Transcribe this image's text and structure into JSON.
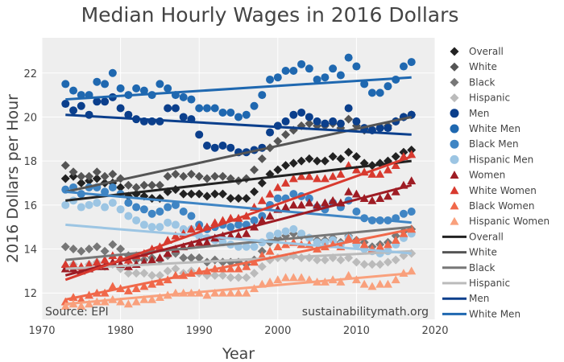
{
  "chart_data": {
    "type": "scatter",
    "title": "Median Hourly Wages in 2016 Dollars",
    "xlabel": "Year",
    "ylabel": "2016 Dollars per Hour",
    "xlim": [
      1970,
      2020
    ],
    "ylim": [
      10.8,
      23.6
    ],
    "xticks": [
      1970,
      1980,
      1990,
      2000,
      2010,
      2020
    ],
    "yticks": [
      12,
      14,
      16,
      18,
      20,
      22
    ],
    "grid": true,
    "background": "#eeeeee",
    "annotations": [
      {
        "text": "Source: EPI",
        "position": "bottom-left"
      },
      {
        "text": "sustainabilitymath.org",
        "position": "bottom-right"
      }
    ],
    "legend_position": "right",
    "x": [
      1973,
      1974,
      1975,
      1976,
      1977,
      1978,
      1979,
      1980,
      1981,
      1982,
      1983,
      1984,
      1985,
      1986,
      1987,
      1988,
      1989,
      1990,
      1991,
      1992,
      1993,
      1994,
      1995,
      1996,
      1997,
      1998,
      1999,
      2000,
      2001,
      2002,
      2003,
      2004,
      2005,
      2006,
      2007,
      2008,
      2009,
      2010,
      2011,
      2012,
      2013,
      2014,
      2015,
      2016,
      2017
    ],
    "series": [
      {
        "name": "Overall",
        "marker": "diamond",
        "color": "#222222",
        "values": [
          17.2,
          17.3,
          17.0,
          17.1,
          17.2,
          17.0,
          17.0,
          16.8,
          16.4,
          16.5,
          16.4,
          16.3,
          16.3,
          16.6,
          16.7,
          16.5,
          16.5,
          16.5,
          16.4,
          16.5,
          16.5,
          16.3,
          16.3,
          16.3,
          16.6,
          17.0,
          17.4,
          17.6,
          17.8,
          17.9,
          18.0,
          18.1,
          18.0,
          18.0,
          18.2,
          18.1,
          18.4,
          18.2,
          17.9,
          17.8,
          17.9,
          18.0,
          18.2,
          18.4,
          18.5
        ]
      },
      {
        "name": "White",
        "marker": "diamond",
        "color": "#555555",
        "values": [
          17.8,
          17.5,
          17.3,
          17.3,
          17.5,
          17.3,
          17.4,
          17.2,
          16.9,
          16.8,
          16.9,
          16.9,
          16.9,
          17.3,
          17.4,
          17.3,
          17.4,
          17.3,
          17.2,
          17.3,
          17.3,
          17.2,
          17.1,
          17.2,
          17.6,
          18.1,
          18.6,
          18.9,
          19.2,
          19.4,
          19.6,
          19.7,
          19.6,
          19.6,
          19.7,
          19.5,
          19.9,
          19.6,
          19.4,
          19.4,
          19.5,
          19.6,
          19.8,
          20.0,
          20.1
        ]
      },
      {
        "name": "Black",
        "marker": "diamond",
        "color": "#777777",
        "values": [
          14.1,
          14.0,
          13.9,
          14.0,
          14.1,
          13.9,
          14.2,
          14.0,
          13.7,
          13.5,
          13.5,
          13.6,
          13.5,
          13.7,
          13.8,
          13.6,
          13.6,
          13.6,
          13.4,
          13.5,
          13.4,
          13.4,
          13.4,
          13.3,
          13.5,
          13.9,
          14.3,
          14.5,
          14.6,
          14.7,
          14.6,
          14.5,
          14.4,
          14.4,
          14.5,
          14.3,
          14.6,
          14.4,
          14.3,
          14.1,
          14.2,
          14.3,
          14.6,
          14.8,
          14.9
        ]
      },
      {
        "name": "Hispanic",
        "marker": "diamond",
        "color": "#bbbbbb",
        "values": [
          13.2,
          13.3,
          13.1,
          13.3,
          13.4,
          13.2,
          13.3,
          13.1,
          12.9,
          12.9,
          12.9,
          12.8,
          12.8,
          13.0,
          13.1,
          12.9,
          13.0,
          12.9,
          12.8,
          12.8,
          12.8,
          12.7,
          12.7,
          12.7,
          12.9,
          13.2,
          13.5,
          13.6,
          13.6,
          13.7,
          13.6,
          13.6,
          13.5,
          13.5,
          13.6,
          13.5,
          13.6,
          13.4,
          13.3,
          13.3,
          13.3,
          13.4,
          13.5,
          13.7,
          13.8
        ]
      },
      {
        "name": "Men",
        "marker": "circle",
        "color": "#0b3f8c",
        "values": [
          20.6,
          20.3,
          20.5,
          20.1,
          20.7,
          20.7,
          20.9,
          20.4,
          20.1,
          19.9,
          19.8,
          19.8,
          19.8,
          20.4,
          20.4,
          20.0,
          19.9,
          19.2,
          18.7,
          18.6,
          18.7,
          18.6,
          18.4,
          18.4,
          18.5,
          18.6,
          19.3,
          19.6,
          19.8,
          20.1,
          20.2,
          20.0,
          19.8,
          19.7,
          19.8,
          19.7,
          20.4,
          19.8,
          19.5,
          19.4,
          19.5,
          19.5,
          19.8,
          20.0,
          20.1
        ]
      },
      {
        "name": "White Men",
        "marker": "circle",
        "color": "#1f68b0",
        "values": [
          21.5,
          21.2,
          21.0,
          21.0,
          21.6,
          21.5,
          22.0,
          21.3,
          21.0,
          21.3,
          21.2,
          21.0,
          21.5,
          21.3,
          21.0,
          20.9,
          20.8,
          20.4,
          20.4,
          20.4,
          20.2,
          20.2,
          20.0,
          20.1,
          20.5,
          21.0,
          21.7,
          21.8,
          22.1,
          22.1,
          22.4,
          22.2,
          21.7,
          21.8,
          22.2,
          21.9,
          22.7,
          22.3,
          21.5,
          21.1,
          21.1,
          21.4,
          21.7,
          22.3,
          22.5
        ]
      },
      {
        "name": "Black Men",
        "marker": "circle",
        "color": "#3f85c4",
        "values": [
          16.7,
          16.8,
          16.5,
          16.8,
          16.8,
          16.6,
          16.8,
          16.5,
          16.1,
          15.9,
          15.8,
          15.6,
          15.7,
          15.9,
          16.0,
          15.7,
          15.5,
          15.1,
          14.9,
          15.0,
          15.1,
          15.0,
          15.1,
          15.1,
          15.3,
          15.5,
          16.0,
          16.3,
          16.3,
          16.5,
          16.4,
          16.3,
          15.9,
          15.8,
          16.1,
          15.9,
          16.2,
          15.7,
          15.4,
          15.3,
          15.3,
          15.3,
          15.4,
          15.6,
          15.7
        ]
      },
      {
        "name": "Hispanic Men",
        "marker": "circle",
        "color": "#9cc5e3",
        "values": [
          16.0,
          16.2,
          15.9,
          16.0,
          16.1,
          15.9,
          16.1,
          15.8,
          15.5,
          15.3,
          15.1,
          15.0,
          15.0,
          15.2,
          15.1,
          14.9,
          14.9,
          14.6,
          14.5,
          14.4,
          14.3,
          14.2,
          14.1,
          14.1,
          14.1,
          14.3,
          14.6,
          14.7,
          14.8,
          14.9,
          14.7,
          14.5,
          14.3,
          14.3,
          14.4,
          14.2,
          14.5,
          14.2,
          14.0,
          13.9,
          13.8,
          13.9,
          14.2,
          14.5,
          14.7
        ]
      },
      {
        "name": "Women",
        "marker": "triangle",
        "color": "#9e1c24",
        "values": [
          13.1,
          13.1,
          13.0,
          13.1,
          13.2,
          13.2,
          13.4,
          13.3,
          13.2,
          13.3,
          13.4,
          13.5,
          13.6,
          13.8,
          14.0,
          14.1,
          14.2,
          14.3,
          14.3,
          14.5,
          14.6,
          14.6,
          14.6,
          14.7,
          15.0,
          15.3,
          15.5,
          15.8,
          15.9,
          16.0,
          16.0,
          16.1,
          16.0,
          16.1,
          16.2,
          16.1,
          16.6,
          16.5,
          16.3,
          16.2,
          16.3,
          16.4,
          16.6,
          16.9,
          17.1
        ]
      },
      {
        "name": "White Women",
        "marker": "triangle",
        "color": "#d83a2f",
        "values": [
          13.3,
          13.3,
          13.2,
          13.3,
          13.4,
          13.5,
          13.7,
          13.6,
          13.5,
          13.7,
          13.8,
          14.0,
          14.1,
          14.4,
          14.6,
          14.7,
          14.9,
          15.0,
          15.0,
          15.2,
          15.3,
          15.4,
          15.4,
          15.5,
          15.9,
          16.2,
          16.5,
          16.8,
          17.0,
          17.2,
          17.3,
          17.3,
          17.2,
          17.2,
          17.3,
          17.4,
          17.8,
          17.6,
          17.5,
          17.4,
          17.4,
          17.6,
          17.8,
          18.2,
          18.3
        ]
      },
      {
        "name": "Black Women",
        "marker": "triangle",
        "color": "#f0684a",
        "values": [
          11.6,
          11.8,
          11.7,
          11.9,
          12.0,
          12.0,
          12.3,
          12.2,
          12.1,
          12.2,
          12.3,
          12.4,
          12.5,
          12.6,
          12.8,
          12.8,
          12.9,
          13.0,
          13.0,
          13.1,
          13.1,
          13.1,
          13.1,
          13.2,
          13.4,
          13.7,
          13.9,
          14.1,
          14.2,
          14.3,
          14.2,
          14.2,
          14.0,
          14.1,
          14.2,
          14.1,
          14.5,
          14.4,
          14.2,
          14.0,
          14.1,
          14.2,
          14.4,
          14.7,
          14.9
        ]
      },
      {
        "name": "Hispanic Women",
        "marker": "triangle",
        "color": "#f9a07c",
        "values": [
          11.4,
          11.5,
          11.4,
          11.5,
          11.6,
          11.6,
          11.7,
          11.6,
          11.5,
          11.6,
          11.7,
          11.7,
          11.8,
          11.9,
          12.0,
          12.0,
          12.0,
          12.0,
          11.9,
          12.0,
          12.0,
          12.0,
          12.0,
          12.0,
          12.2,
          12.4,
          12.5,
          12.6,
          12.7,
          12.7,
          12.7,
          12.6,
          12.5,
          12.5,
          12.6,
          12.5,
          12.8,
          12.6,
          12.4,
          12.3,
          12.4,
          12.4,
          12.6,
          12.9,
          13.0
        ]
      }
    ],
    "trendlines": [
      {
        "name": "Overall",
        "color": "#222222",
        "width": 3,
        "x": [
          1973,
          2017
        ],
        "values": [
          16.2,
          18.0
        ]
      },
      {
        "name": "White",
        "color": "#555555",
        "width": 3,
        "x": [
          1973,
          2017
        ],
        "values": [
          16.6,
          20.0
        ]
      },
      {
        "name": "Black",
        "color": "#777777",
        "width": 3,
        "x": [
          1973,
          2017
        ],
        "values": [
          13.5,
          15.0
        ]
      },
      {
        "name": "Hispanic",
        "color": "#bbbbbb",
        "width": 3,
        "x": [
          1973,
          2017
        ],
        "values": [
          13.1,
          13.9
        ]
      },
      {
        "name": "Men",
        "color": "#0b3f8c",
        "width": 3,
        "x": [
          1973,
          2017
        ],
        "values": [
          20.1,
          19.2
        ]
      },
      {
        "name": "White Men",
        "color": "#1f68b0",
        "width": 3,
        "x": [
          1973,
          2017
        ],
        "values": [
          20.8,
          21.8
        ]
      },
      {
        "name": "Black Men",
        "color": "#3f85c4",
        "width": 3,
        "x": [
          1973,
          2017
        ],
        "values": [
          16.6,
          15.2
        ]
      },
      {
        "name": "Hispanic Men",
        "color": "#9cc5e3",
        "width": 3,
        "x": [
          1973,
          2017
        ],
        "values": [
          15.1,
          13.8
        ]
      },
      {
        "name": "Women",
        "color": "#9e1c24",
        "width": 3,
        "x": [
          1973,
          2017
        ],
        "values": [
          12.8,
          16.9
        ]
      },
      {
        "name": "White Women",
        "color": "#d83a2f",
        "width": 3,
        "x": [
          1973,
          2017
        ],
        "values": [
          12.6,
          18.2
        ]
      },
      {
        "name": "Black Women",
        "color": "#f0684a",
        "width": 3,
        "x": [
          1973,
          2017
        ],
        "values": [
          11.7,
          14.9
        ]
      },
      {
        "name": "Hispanic Women",
        "color": "#f9a07c",
        "width": 3,
        "x": [
          1973,
          2017
        ],
        "values": [
          11.5,
          12.9
        ]
      }
    ],
    "legend": [
      {
        "label": "Overall",
        "kind": "marker",
        "marker": "diamond",
        "color": "#222222"
      },
      {
        "label": "White",
        "kind": "marker",
        "marker": "diamond",
        "color": "#555555"
      },
      {
        "label": "Black",
        "kind": "marker",
        "marker": "diamond",
        "color": "#777777"
      },
      {
        "label": "Hispanic",
        "kind": "marker",
        "marker": "diamond",
        "color": "#bbbbbb"
      },
      {
        "label": "Men",
        "kind": "marker",
        "marker": "circle",
        "color": "#0b3f8c"
      },
      {
        "label": "White Men",
        "kind": "marker",
        "marker": "circle",
        "color": "#1f68b0"
      },
      {
        "label": "Black Men",
        "kind": "marker",
        "marker": "circle",
        "color": "#3f85c4"
      },
      {
        "label": "Hispanic Men",
        "kind": "marker",
        "marker": "circle",
        "color": "#9cc5e3"
      },
      {
        "label": "Women",
        "kind": "marker",
        "marker": "triangle",
        "color": "#9e1c24"
      },
      {
        "label": "White Women",
        "kind": "marker",
        "marker": "triangle",
        "color": "#d83a2f"
      },
      {
        "label": "Black Women",
        "kind": "marker",
        "marker": "triangle",
        "color": "#f0684a"
      },
      {
        "label": "Hispanic Women",
        "kind": "marker",
        "marker": "triangle",
        "color": "#f9a07c"
      },
      {
        "label": "Overall",
        "kind": "line",
        "color": "#222222"
      },
      {
        "label": "White",
        "kind": "line",
        "color": "#555555"
      },
      {
        "label": "Black",
        "kind": "line",
        "color": "#777777"
      },
      {
        "label": "Hispanic",
        "kind": "line",
        "color": "#bbbbbb"
      },
      {
        "label": "Men",
        "kind": "line",
        "color": "#0b3f8c"
      },
      {
        "label": "White Men",
        "kind": "line",
        "color": "#1f68b0"
      }
    ]
  }
}
